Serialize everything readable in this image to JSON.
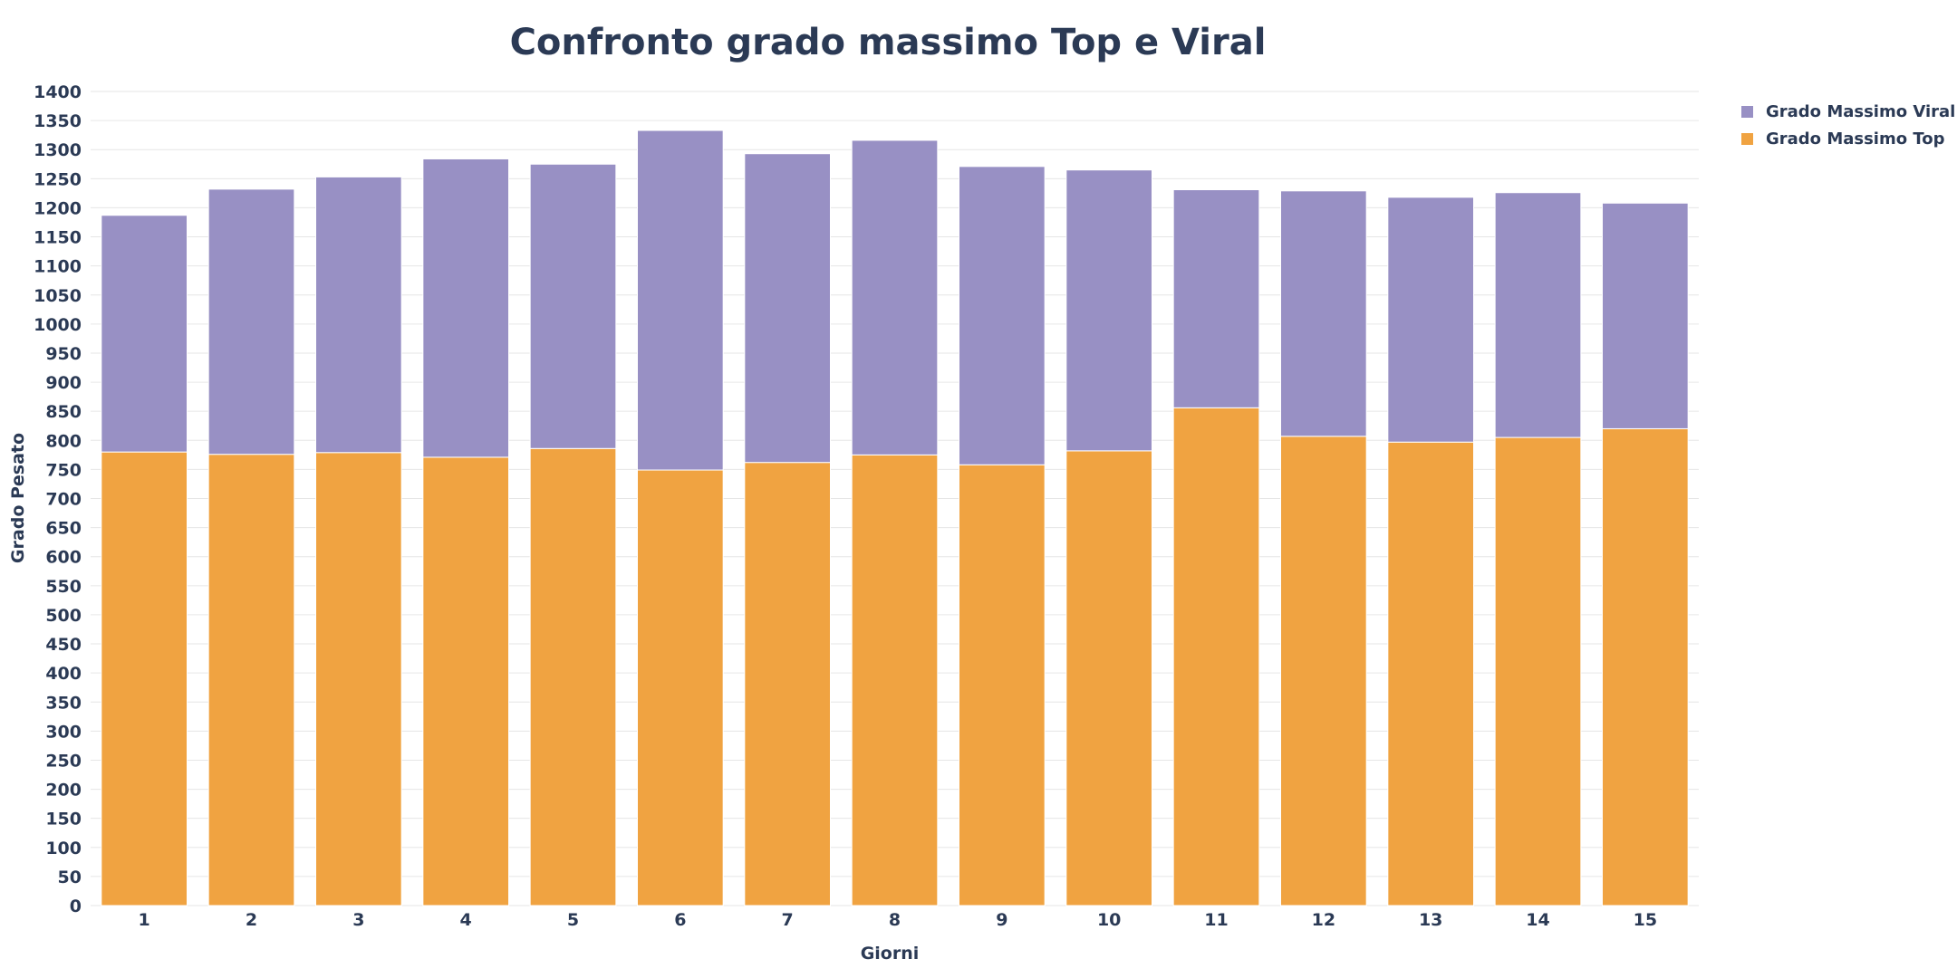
{
  "chart_data": {
    "type": "bar",
    "stacked": true,
    "title": "Confronto grado massimo Top e Viral",
    "xlabel": "Giorni",
    "ylabel": "Grado Pesato",
    "ylim": [
      0,
      1400
    ],
    "ytick_step": 50,
    "grid": true,
    "legend_position": "top-right",
    "categories": [
      "1",
      "2",
      "3",
      "4",
      "5",
      "6",
      "7",
      "8",
      "9",
      "10",
      "11",
      "12",
      "13",
      "14",
      "15"
    ],
    "series": [
      {
        "name": "Grado Massimo Top",
        "color": "#f0a341",
        "values": [
          780,
          776,
          779,
          771,
          786,
          749,
          762,
          775,
          758,
          782,
          856,
          807,
          797,
          805,
          820
        ]
      },
      {
        "name": "Grado Massimo Viral",
        "color": "#9890c4",
        "values": [
          407,
          456,
          474,
          513,
          489,
          584,
          531,
          541,
          513,
          483,
          375,
          422,
          421,
          421,
          388
        ]
      }
    ]
  }
}
